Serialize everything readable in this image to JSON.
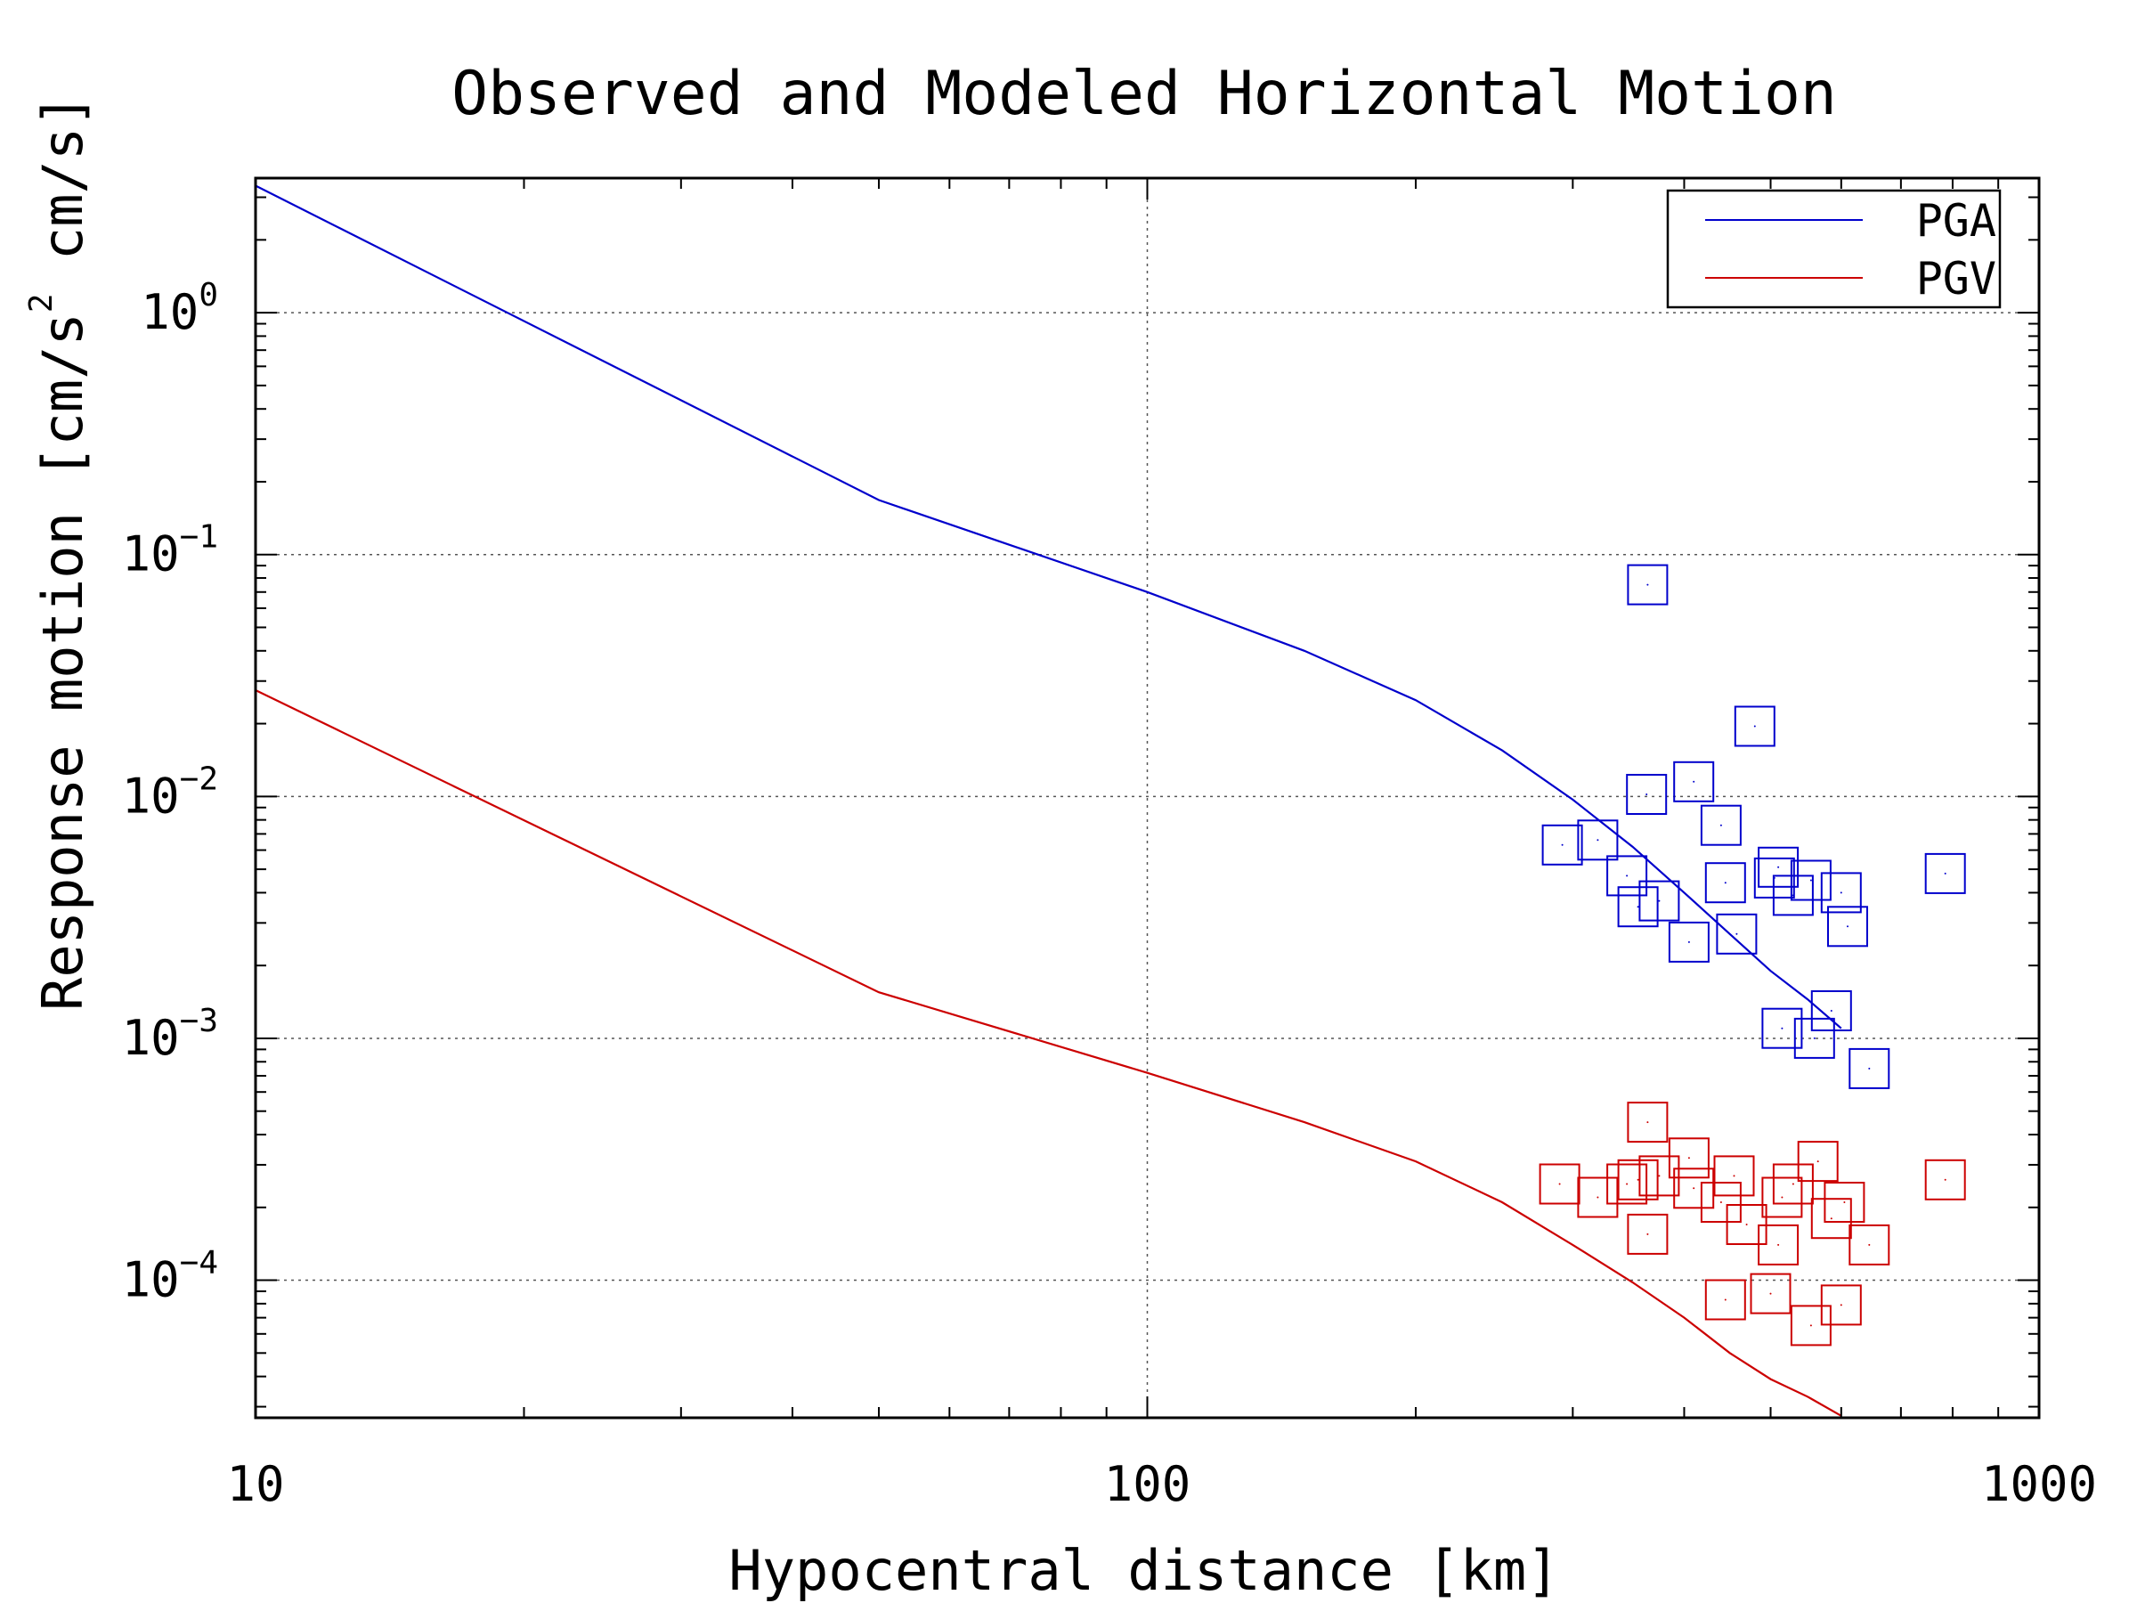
{
  "chart_data": {
    "type": "scatter",
    "title": "Observed and Modeled Horizontal Motion",
    "xlabel": "Hypocentral distance [km]",
    "ylabel": "Response motion [cm/s",
    "ylabel_sup": "2",
    "ylabel_tail": " cm/s]",
    "x_scale": "log",
    "y_scale": "log",
    "xlim": [
      10,
      1000
    ],
    "ylim": [
      2.7e-05,
      3.6
    ],
    "grid": true,
    "legend_position": "top-right",
    "x_ticks": [
      {
        "value": 10,
        "label": "10"
      },
      {
        "value": 100,
        "label": "100"
      },
      {
        "value": 1000,
        "label": "1000"
      }
    ],
    "y_ticks": [
      {
        "value": 1,
        "base": "10",
        "exp": "0"
      },
      {
        "value": 0.1,
        "base": "10",
        "exp": "−1"
      },
      {
        "value": 0.01,
        "base": "10",
        "exp": "−2"
      },
      {
        "value": 0.001,
        "base": "10",
        "exp": "−3"
      },
      {
        "value": 0.0001,
        "base": "10",
        "exp": "−4"
      }
    ],
    "series": [
      {
        "name": "PGA",
        "color": "#0000cc",
        "line": [
          [
            10,
            3.35
          ],
          [
            50,
            0.168
          ],
          [
            100,
            0.07
          ],
          [
            150,
            0.04
          ],
          [
            200,
            0.025
          ],
          [
            250,
            0.0155
          ],
          [
            300,
            0.0097
          ],
          [
            350,
            0.0062
          ],
          [
            400,
            0.004
          ],
          [
            450,
            0.0027
          ],
          [
            500,
            0.0019
          ],
          [
            550,
            0.00145
          ],
          [
            600,
            0.0011
          ]
        ],
        "observed": [
          [
            292,
            0.0063
          ],
          [
            320,
            0.0066
          ],
          [
            345,
            0.0047
          ],
          [
            355,
            0.0035
          ],
          [
            363,
            0.0102
          ],
          [
            364,
            0.075
          ],
          [
            375,
            0.0037
          ],
          [
            405,
            0.0025
          ],
          [
            410,
            0.0115
          ],
          [
            440,
            0.0076
          ],
          [
            445,
            0.0044
          ],
          [
            458,
            0.0027
          ],
          [
            480,
            0.0195
          ],
          [
            505,
            0.0046
          ],
          [
            510,
            0.0051
          ],
          [
            515,
            0.0011
          ],
          [
            530,
            0.0039
          ],
          [
            555,
            0.0045
          ],
          [
            560,
            0.001
          ],
          [
            585,
            0.0013
          ],
          [
            600,
            0.004
          ],
          [
            610,
            0.0029
          ],
          [
            645,
            0.00075
          ],
          [
            785,
            0.0048
          ]
        ]
      },
      {
        "name": "PGV",
        "color": "#cc0000",
        "line": [
          [
            10,
            0.0275
          ],
          [
            50,
            0.00155
          ],
          [
            100,
            0.00072
          ],
          [
            150,
            0.00045
          ],
          [
            200,
            0.00031
          ],
          [
            250,
            0.00021
          ],
          [
            300,
            0.00014
          ],
          [
            350,
            9.8e-05
          ],
          [
            400,
            7e-05
          ],
          [
            450,
            5e-05
          ],
          [
            500,
            3.9e-05
          ],
          [
            550,
            3.3e-05
          ],
          [
            600,
            2.75e-05
          ]
        ],
        "observed": [
          [
            290,
            0.00025
          ],
          [
            320,
            0.00022
          ],
          [
            345,
            0.00025
          ],
          [
            355,
            0.00026
          ],
          [
            364,
            0.00045
          ],
          [
            364,
            0.000155
          ],
          [
            375,
            0.00027
          ],
          [
            405,
            0.00032
          ],
          [
            410,
            0.00024
          ],
          [
            440,
            0.00021
          ],
          [
            445,
            8.3e-05
          ],
          [
            455,
            0.00027
          ],
          [
            470,
            0.00017
          ],
          [
            500,
            8.8e-05
          ],
          [
            510,
            0.00014
          ],
          [
            515,
            0.00022
          ],
          [
            530,
            0.00025
          ],
          [
            555,
            6.5e-05
          ],
          [
            565,
            0.00031
          ],
          [
            585,
            0.00018
          ],
          [
            600,
            7.9e-05
          ],
          [
            605,
            0.00021
          ],
          [
            645,
            0.00014
          ],
          [
            785,
            0.00026
          ]
        ]
      }
    ]
  }
}
